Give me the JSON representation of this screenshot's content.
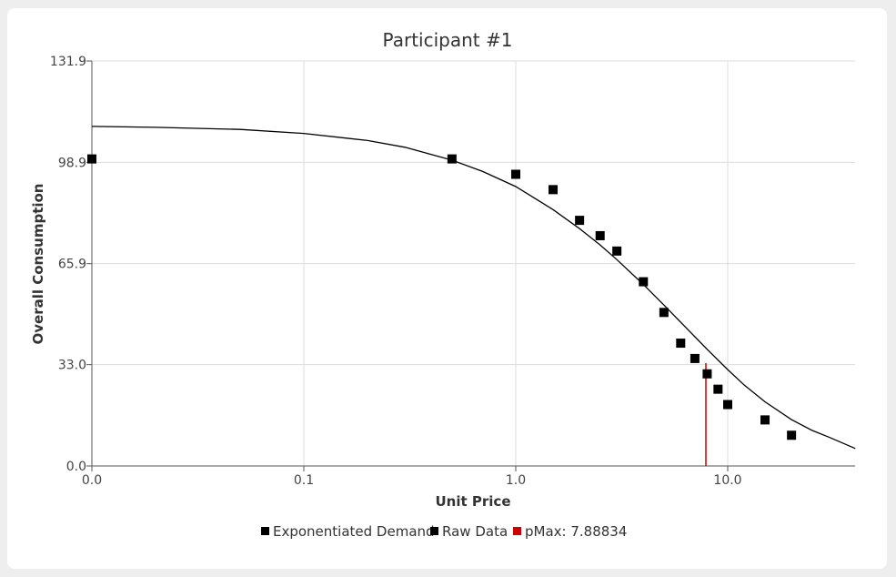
{
  "chart_data": {
    "type": "scatter",
    "title": "Participant #1",
    "xlabel": "Unit Price",
    "ylabel": "Overall Consumption",
    "x_scale": "log",
    "x_ticks": [
      0.01,
      0.1,
      1,
      10
    ],
    "x_tick_labels": [
      "0.0",
      "0.1",
      "1.0",
      "10.0"
    ],
    "xlim": [
      0.01,
      40
    ],
    "ylim": [
      0,
      131.9
    ],
    "y_ticks": [
      0,
      33,
      65.9,
      98.9,
      131.9
    ],
    "y_tick_labels": [
      "0.0",
      "33.0",
      "65.9",
      "98.9",
      "131.9"
    ],
    "grid": true,
    "legend_position": "bottom",
    "series": [
      {
        "name": "Exponentiated Demand",
        "kind": "line",
        "color": "#000000",
        "points": [
          [
            0.01,
            110.6
          ],
          [
            0.02,
            110.3
          ],
          [
            0.05,
            109.6
          ],
          [
            0.1,
            108.3
          ],
          [
            0.2,
            106.0
          ],
          [
            0.3,
            103.8
          ],
          [
            0.5,
            99.6
          ],
          [
            0.7,
            95.9
          ],
          [
            1.0,
            91.0
          ],
          [
            1.5,
            83.5
          ],
          [
            2.0,
            77.3
          ],
          [
            2.5,
            72.0
          ],
          [
            3.0,
            67.2
          ],
          [
            4.0,
            59.1
          ],
          [
            5.0,
            52.4
          ],
          [
            6.0,
            46.8
          ],
          [
            7.0,
            42.1
          ],
          [
            8.0,
            38.0
          ],
          [
            10.0,
            31.4
          ],
          [
            12.0,
            26.3
          ],
          [
            15.0,
            20.9
          ],
          [
            20.0,
            15.1
          ],
          [
            25.0,
            11.6
          ],
          [
            30.0,
            9.4
          ],
          [
            40.0,
            5.7
          ]
        ]
      },
      {
        "name": "Raw Data",
        "kind": "scatter",
        "color": "#000000",
        "points": [
          [
            0.01,
            100
          ],
          [
            0.5,
            100
          ],
          [
            1.0,
            95
          ],
          [
            1.5,
            90
          ],
          [
            2.0,
            80
          ],
          [
            2.5,
            75
          ],
          [
            3.0,
            70
          ],
          [
            4.0,
            60
          ],
          [
            5.0,
            50
          ],
          [
            6.0,
            40
          ],
          [
            7.0,
            35
          ],
          [
            8.0,
            30
          ],
          [
            9.0,
            25
          ],
          [
            10.0,
            20
          ],
          [
            15.0,
            15
          ],
          [
            20.0,
            10
          ]
        ]
      },
      {
        "name": "pMax: 7.88834",
        "kind": "vline",
        "color": "#cc0000",
        "x": 7.88834,
        "y": 33.5
      }
    ]
  }
}
